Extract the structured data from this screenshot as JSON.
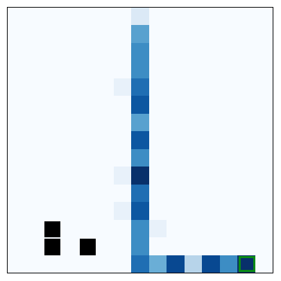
{
  "grid": {
    "rows": 15,
    "cols": 15,
    "background_color": "#f7fbff",
    "cells": [
      {
        "row": 0,
        "col": 7,
        "color": "#dbe9f6"
      },
      {
        "row": 1,
        "col": 7,
        "color": "#58a1cf"
      },
      {
        "row": 2,
        "col": 7,
        "color": "#3d8dc4"
      },
      {
        "row": 3,
        "col": 7,
        "color": "#3d8dc4"
      },
      {
        "row": 4,
        "col": 6,
        "color": "#e8f1fa"
      },
      {
        "row": 4,
        "col": 7,
        "color": "#1f6eb3"
      },
      {
        "row": 5,
        "col": 7,
        "color": "#0d57a1"
      },
      {
        "row": 6,
        "col": 7,
        "color": "#58a1cf"
      },
      {
        "row": 7,
        "col": 7,
        "color": "#0d57a1"
      },
      {
        "row": 8,
        "col": 7,
        "color": "#3d8dc4"
      },
      {
        "row": 9,
        "col": 6,
        "color": "#e8f1fa"
      },
      {
        "row": 9,
        "col": 7,
        "color": "#08306b"
      },
      {
        "row": 10,
        "col": 7,
        "color": "#1f6eb3"
      },
      {
        "row": 11,
        "col": 6,
        "color": "#e8f1fa"
      },
      {
        "row": 11,
        "col": 7,
        "color": "#0d57a1"
      },
      {
        "row": 12,
        "col": 7,
        "color": "#3d8dc4"
      },
      {
        "row": 12,
        "col": 8,
        "color": "#e8f1fa"
      },
      {
        "row": 13,
        "col": 7,
        "color": "#3d8dc4"
      },
      {
        "row": 14,
        "col": 7,
        "color": "#1f6eb3"
      },
      {
        "row": 14,
        "col": 8,
        "color": "#6aaed6"
      },
      {
        "row": 14,
        "col": 9,
        "color": "#084891"
      },
      {
        "row": 14,
        "col": 10,
        "color": "#b7d4ea"
      },
      {
        "row": 14,
        "col": 11,
        "color": "#084891"
      },
      {
        "row": 14,
        "col": 12,
        "color": "#3d8dc4"
      },
      {
        "row": 14,
        "col": 13,
        "color": "#08306b"
      }
    ],
    "walls": [
      {
        "row": 12,
        "col": 2
      },
      {
        "row": 13,
        "col": 2
      },
      {
        "row": 13,
        "col": 4
      }
    ],
    "wall_color": "#000000",
    "player": {
      "row": 14,
      "col": 13,
      "border_color": "#0b8a16"
    }
  }
}
